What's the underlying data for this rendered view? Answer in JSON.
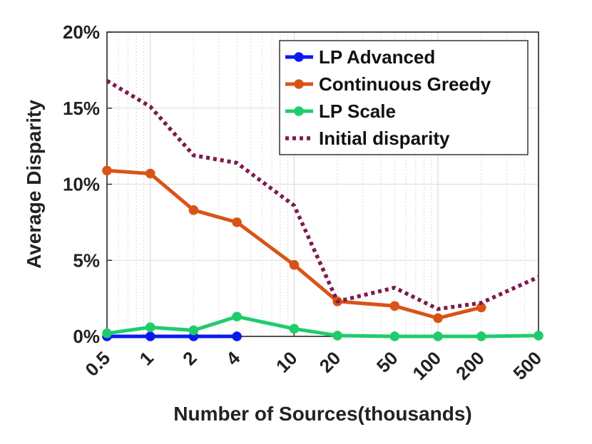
{
  "chart_data": {
    "type": "line",
    "xscale": "log",
    "categories": [
      "0.5",
      "1",
      "2",
      "4",
      "10",
      "20",
      "50",
      "100",
      "200",
      "500"
    ],
    "x": [
      0.5,
      1,
      2,
      4,
      10,
      20,
      50,
      100,
      200,
      500
    ],
    "xlim": [
      0.5,
      500
    ],
    "ylim": [
      0,
      20
    ],
    "yticks": [
      0,
      5,
      10,
      15,
      20
    ],
    "ytick_labels": [
      "0%",
      "5%",
      "10%",
      "15%",
      "20%"
    ],
    "xlabel": "Number of Sources(thousands)",
    "ylabel": "Average Disparity",
    "grid": true,
    "legend_position": "top-right",
    "series": [
      {
        "name": "LP Advanced",
        "color": "#0a1aee",
        "style": "solid",
        "marker": "circle",
        "x": [
          0.5,
          1,
          2,
          4
        ],
        "values": [
          0.0,
          0.0,
          0.0,
          0.0
        ]
      },
      {
        "name": "Continuous Greedy",
        "color": "#d95318",
        "style": "solid",
        "marker": "circle",
        "x": [
          0.5,
          1,
          2,
          4,
          10,
          20,
          50,
          100,
          200
        ],
        "values": [
          10.9,
          10.7,
          8.3,
          7.5,
          4.7,
          2.3,
          2.0,
          1.2,
          1.9
        ]
      },
      {
        "name": "LP Scale",
        "color": "#1fcc6b",
        "style": "solid",
        "marker": "circle",
        "x": [
          0.5,
          1,
          2,
          4,
          10,
          20,
          50,
          100,
          200,
          500
        ],
        "values": [
          0.2,
          0.6,
          0.4,
          1.3,
          0.5,
          0.05,
          0.0,
          0.0,
          0.0,
          0.05
        ]
      },
      {
        "name": "Initial disparity",
        "color": "#7e1a4d",
        "style": "dotted",
        "marker": "none",
        "x": [
          0.5,
          1,
          2,
          4,
          10,
          20,
          50,
          100,
          200,
          500
        ],
        "values": [
          16.8,
          15.1,
          11.9,
          11.4,
          8.6,
          2.3,
          3.2,
          1.8,
          2.2,
          3.9
        ]
      }
    ]
  }
}
